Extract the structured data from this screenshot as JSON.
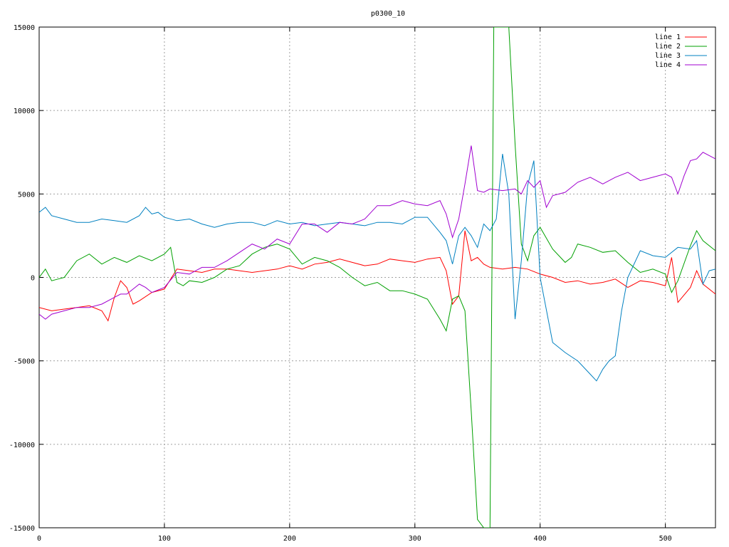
{
  "chart_data": {
    "type": "line",
    "title": "p0300_10",
    "xlabel": "",
    "ylabel": "",
    "xlim": [
      0,
      540
    ],
    "ylim": [
      -15000,
      15000
    ],
    "xticks": [
      0,
      100,
      200,
      300,
      400,
      500
    ],
    "yticks": [
      -15000,
      -10000,
      -5000,
      0,
      5000,
      10000,
      15000
    ],
    "grid": true,
    "legend_position": "top-right",
    "series": [
      {
        "name": "line 1",
        "color": "#ff0000",
        "x": [
          0,
          10,
          20,
          30,
          40,
          50,
          55,
          60,
          65,
          70,
          75,
          80,
          90,
          100,
          110,
          120,
          130,
          140,
          150,
          160,
          170,
          180,
          190,
          200,
          210,
          220,
          230,
          240,
          250,
          260,
          270,
          280,
          290,
          300,
          310,
          320,
          325,
          330,
          335,
          340,
          345,
          350,
          355,
          360,
          370,
          380,
          390,
          400,
          410,
          420,
          430,
          440,
          450,
          460,
          470,
          480,
          490,
          500,
          505,
          510,
          520,
          525,
          530,
          540
        ],
        "y": [
          -1800,
          -2000,
          -1900,
          -1800,
          -1700,
          -2000,
          -2600,
          -1200,
          -200,
          -600,
          -1600,
          -1400,
          -900,
          -700,
          500,
          400,
          300,
          500,
          500,
          400,
          300,
          400,
          500,
          700,
          500,
          800,
          900,
          1100,
          900,
          700,
          800,
          1100,
          1000,
          900,
          1100,
          1200,
          400,
          -1600,
          -1100,
          2800,
          1000,
          1200,
          800,
          600,
          500,
          600,
          500,
          200,
          0,
          -300,
          -200,
          -400,
          -300,
          -100,
          -600,
          -200,
          -300,
          -500,
          1200,
          -1500,
          -600,
          400,
          -400,
          -1000
        ]
      },
      {
        "name": "line 2",
        "color": "#00a000",
        "x": [
          0,
          5,
          10,
          15,
          20,
          30,
          40,
          50,
          60,
          70,
          80,
          90,
          100,
          105,
          110,
          115,
          120,
          130,
          140,
          150,
          160,
          170,
          180,
          190,
          200,
          210,
          220,
          230,
          240,
          250,
          260,
          270,
          280,
          290,
          300,
          310,
          320,
          325,
          330,
          335,
          340,
          345,
          350,
          355,
          360,
          363,
          366,
          370,
          375,
          380,
          385,
          390,
          395,
          400,
          410,
          420,
          425,
          430,
          440,
          450,
          460,
          470,
          480,
          490,
          500,
          505,
          510,
          520,
          525,
          530,
          540
        ],
        "y": [
          0,
          500,
          -200,
          -100,
          0,
          1000,
          1400,
          800,
          1200,
          900,
          1300,
          1000,
          1400,
          1800,
          -300,
          -500,
          -200,
          -300,
          0,
          500,
          700,
          1400,
          1800,
          2000,
          1700,
          800,
          1200,
          1000,
          600,
          0,
          -500,
          -300,
          -800,
          -800,
          -1000,
          -1300,
          -2500,
          -3200,
          -1300,
          -1100,
          -2000,
          -8000,
          -14500,
          -15000,
          -15000,
          15000,
          15000,
          15000,
          15000,
          8000,
          2000,
          1000,
          2500,
          3000,
          1700,
          900,
          1200,
          2000,
          1800,
          1500,
          1600,
          900,
          300,
          500,
          200,
          -900,
          -200,
          1900,
          2800,
          2200,
          1600
        ]
      },
      {
        "name": "line 3",
        "color": "#0080c0",
        "x": [
          0,
          5,
          10,
          20,
          30,
          40,
          50,
          60,
          70,
          80,
          85,
          90,
          95,
          100,
          110,
          120,
          130,
          140,
          150,
          160,
          170,
          180,
          190,
          200,
          210,
          220,
          230,
          240,
          250,
          260,
          270,
          280,
          290,
          300,
          310,
          320,
          325,
          330,
          335,
          340,
          345,
          350,
          355,
          360,
          365,
          370,
          375,
          380,
          385,
          390,
          395,
          400,
          410,
          420,
          430,
          440,
          445,
          450,
          455,
          460,
          465,
          470,
          480,
          490,
          500,
          510,
          520,
          525,
          530,
          535,
          540
        ],
        "y": [
          3900,
          4200,
          3700,
          3500,
          3300,
          3300,
          3500,
          3400,
          3300,
          3700,
          4200,
          3800,
          3900,
          3600,
          3400,
          3500,
          3200,
          3000,
          3200,
          3300,
          3300,
          3100,
          3400,
          3200,
          3300,
          3100,
          3200,
          3300,
          3200,
          3100,
          3300,
          3300,
          3200,
          3600,
          3600,
          2700,
          2200,
          800,
          2500,
          3000,
          2500,
          1800,
          3200,
          2800,
          3500,
          7400,
          5000,
          -2500,
          1000,
          5500,
          7000,
          0,
          -3900,
          -4500,
          -5000,
          -5800,
          -6200,
          -5500,
          -5000,
          -4700,
          -2000,
          0,
          1600,
          1300,
          1200,
          1800,
          1700,
          2200,
          -400,
          400,
          500
        ]
      },
      {
        "name": "line 4",
        "color": "#a000d0",
        "x": [
          0,
          5,
          10,
          20,
          30,
          40,
          50,
          60,
          65,
          70,
          80,
          85,
          90,
          100,
          110,
          120,
          130,
          140,
          150,
          160,
          170,
          180,
          190,
          200,
          210,
          220,
          230,
          240,
          250,
          260,
          270,
          280,
          290,
          300,
          310,
          320,
          325,
          330,
          335,
          340,
          345,
          350,
          355,
          360,
          370,
          380,
          385,
          390,
          395,
          400,
          405,
          410,
          420,
          430,
          440,
          450,
          460,
          470,
          480,
          490,
          500,
          505,
          510,
          515,
          520,
          525,
          530,
          535,
          540
        ],
        "y": [
          -2200,
          -2500,
          -2200,
          -2000,
          -1800,
          -1800,
          -1600,
          -1200,
          -1000,
          -1000,
          -400,
          -600,
          -900,
          -600,
          300,
          200,
          600,
          600,
          1000,
          1500,
          2000,
          1700,
          2300,
          2000,
          3200,
          3200,
          2700,
          3300,
          3200,
          3500,
          4300,
          4300,
          4600,
          4400,
          4300,
          4600,
          3800,
          2400,
          3500,
          5600,
          7900,
          5200,
          5100,
          5300,
          5200,
          5300,
          5000,
          5800,
          5400,
          5800,
          4200,
          4900,
          5100,
          5700,
          6000,
          5600,
          6000,
          6300,
          5800,
          6000,
          6200,
          6000,
          5000,
          6100,
          7000,
          7100,
          7500,
          7300,
          7100
        ]
      }
    ]
  }
}
